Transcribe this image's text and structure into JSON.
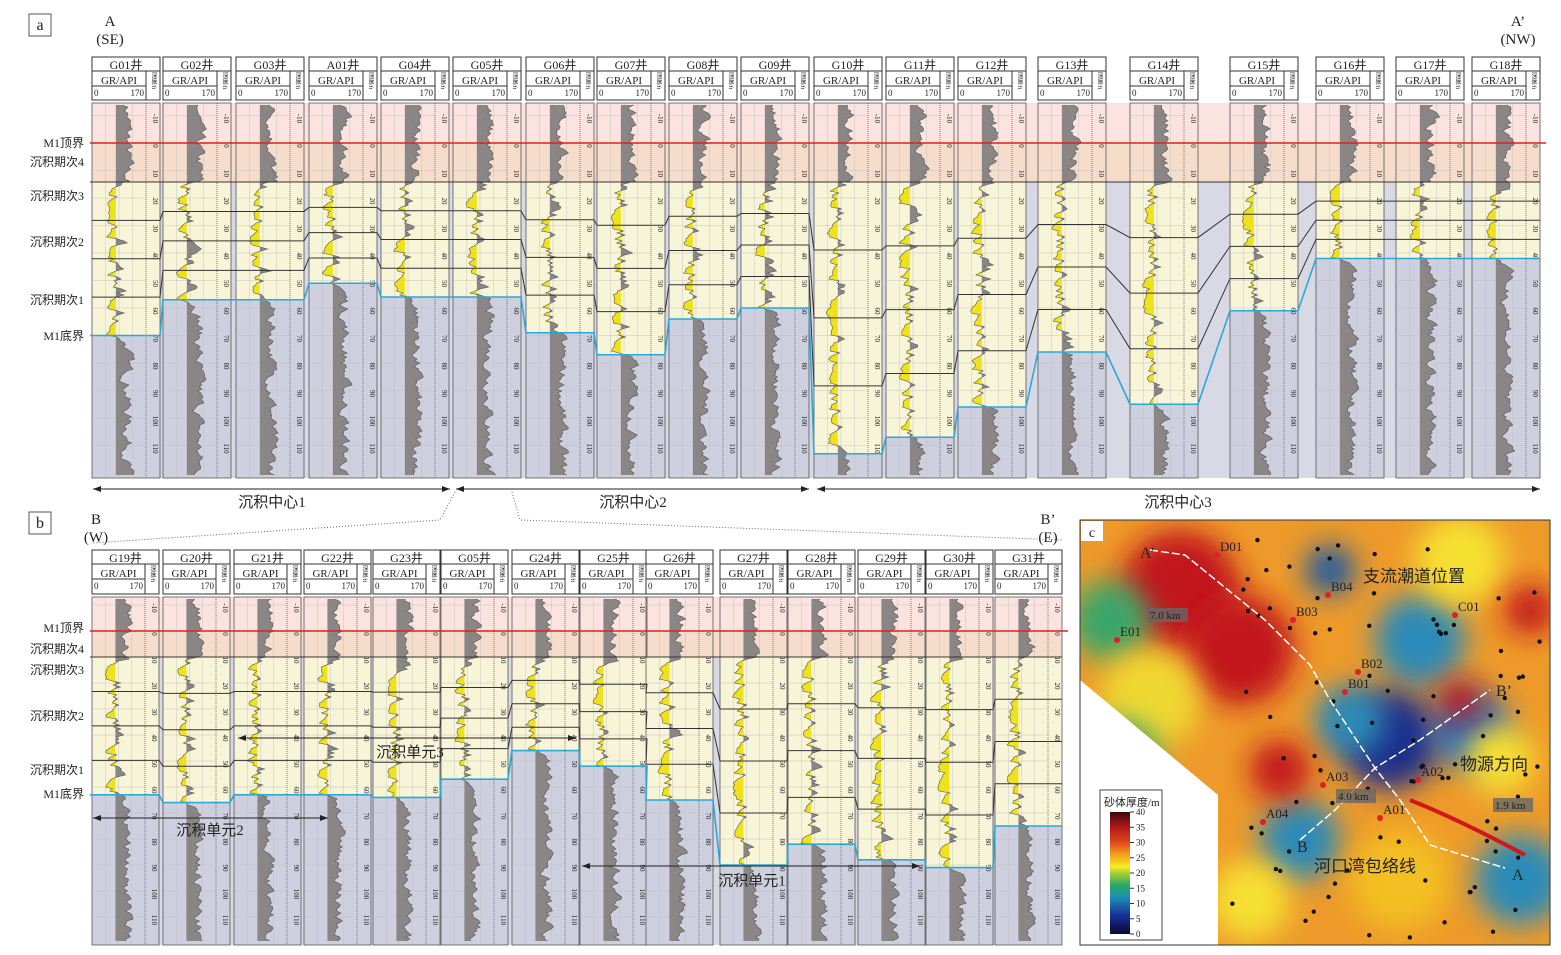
{
  "panel_a": {
    "label": "a",
    "start": {
      "letter": "A",
      "dir": "(SE)"
    },
    "end": {
      "letter": "A’",
      "dir": "(NW)"
    },
    "gr_label": "GR/API",
    "gr_min": "0",
    "gr_max": "170",
    "depth_label": "深度/ft",
    "depth_ticks": [
      -10,
      0,
      10,
      20,
      30,
      40,
      50,
      60,
      70,
      80,
      90,
      100,
      110
    ],
    "wells": [
      {
        "name": "G01井",
        "bottom_ft": 70
      },
      {
        "name": "G02井",
        "bottom_ft": 57
      },
      {
        "name": "G03井",
        "bottom_ft": 57
      },
      {
        "name": "A01井",
        "bottom_ft": 51,
        "highlight": true
      },
      {
        "name": "G04井",
        "bottom_ft": 56
      },
      {
        "name": "G05井",
        "bottom_ft": 56
      },
      {
        "name": "G06井",
        "bottom_ft": 69
      },
      {
        "name": "G07井",
        "bottom_ft": 77
      },
      {
        "name": "G08井",
        "bottom_ft": 64
      },
      {
        "name": "G09井",
        "bottom_ft": 60
      },
      {
        "name": "G10井",
        "bottom_ft": 113
      },
      {
        "name": "G11井",
        "bottom_ft": 107
      },
      {
        "name": "G12井",
        "bottom_ft": 96
      },
      {
        "name": "G13井",
        "bottom_ft": 76
      },
      {
        "name": "G14井",
        "bottom_ft": 95
      },
      {
        "name": "G15井",
        "bottom_ft": 61
      },
      {
        "name": "G16井",
        "bottom_ft": 42
      },
      {
        "name": "G17井",
        "bottom_ft": 42
      },
      {
        "name": "G18井",
        "bottom_ft": 42
      }
    ],
    "left_labels": [
      "M1顶界",
      "沉积期次4",
      "沉积期次3",
      "沉积期次2",
      "沉积期次1",
      "M1底界"
    ],
    "centers": [
      "沉积中心1",
      "沉积中心2",
      "沉积中心3"
    ]
  },
  "panel_b": {
    "label": "b",
    "start": {
      "letter": "B",
      "dir": "(W)"
    },
    "end": {
      "letter": "B’",
      "dir": "(E)"
    },
    "gr_label": "GR/API",
    "gr_min": "0",
    "gr_max": "170",
    "depth_label": "深度/ft",
    "depth_ticks": [
      -10,
      0,
      10,
      20,
      30,
      40,
      50,
      60,
      70,
      80,
      90,
      100,
      110
    ],
    "wells": [
      {
        "name": "G19井",
        "bottom_ft": 63
      },
      {
        "name": "G20井",
        "bottom_ft": 66
      },
      {
        "name": "G21井",
        "bottom_ft": 63
      },
      {
        "name": "G22井",
        "bottom_ft": 63
      },
      {
        "name": "G23井",
        "bottom_ft": 64
      },
      {
        "name": "G05井",
        "bottom_ft": 57
      },
      {
        "name": "G24井",
        "bottom_ft": 46
      },
      {
        "name": "G25井",
        "bottom_ft": 52
      },
      {
        "name": "G26井",
        "bottom_ft": 65
      },
      {
        "name": "G27井",
        "bottom_ft": 90
      },
      {
        "name": "G28井",
        "bottom_ft": 82
      },
      {
        "name": "G29井",
        "bottom_ft": 88
      },
      {
        "name": "G30井",
        "bottom_ft": 91
      },
      {
        "name": "G31井",
        "bottom_ft": 75
      }
    ],
    "left_labels": [
      "M1顶界",
      "沉积期次4",
      "沉积期次3",
      "沉积期次2",
      "沉积期次1",
      "M1底界"
    ],
    "units": [
      "沉积单元3",
      "沉积单元2",
      "沉积单元1"
    ]
  },
  "panel_c": {
    "label": "c",
    "wells": [
      "D01",
      "B04",
      "B03",
      "C01",
      "E01",
      "B02",
      "B01",
      "A03",
      "A02",
      "A04",
      "A01"
    ],
    "section_labels": [
      "A’",
      "A",
      "B",
      "B’"
    ],
    "distances": [
      "7.0 km",
      "4.0 km",
      "1.9 km"
    ],
    "annotations": [
      "支流潮道位置",
      "物源方向",
      "河口湾包络线"
    ],
    "colorbar": {
      "title": "砂体厚度/m",
      "ticks": [
        0,
        5,
        10,
        15,
        20,
        25,
        30,
        35,
        40
      ]
    }
  },
  "colors": {
    "sand": "#f0e21a",
    "shale": "#8a8686",
    "top_line": "#e0201c",
    "bottom_line": "#29a9d8",
    "highlight": "#e0201c"
  }
}
